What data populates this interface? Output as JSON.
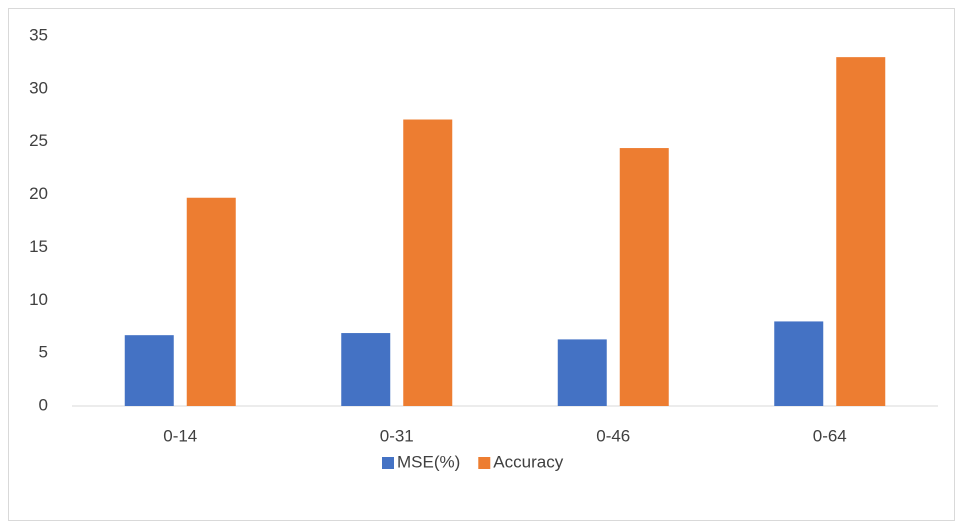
{
  "chart_data": {
    "type": "bar",
    "categories": [
      "0-14",
      "0-31",
      "0-46",
      "0-64"
    ],
    "series": [
      {
        "name": "MSE(%)",
        "color": "#4472c4",
        "values": [
          6.7,
          6.9,
          6.3,
          8.0
        ]
      },
      {
        "name": "Accuracy",
        "color": "#ed7d31",
        "values": [
          19.7,
          27.1,
          24.4,
          33.0
        ]
      }
    ],
    "ylim": [
      0,
      35
    ],
    "yticks": [
      0,
      5,
      10,
      15,
      20,
      25,
      30,
      35
    ],
    "grid": false,
    "legend": "bottom"
  }
}
